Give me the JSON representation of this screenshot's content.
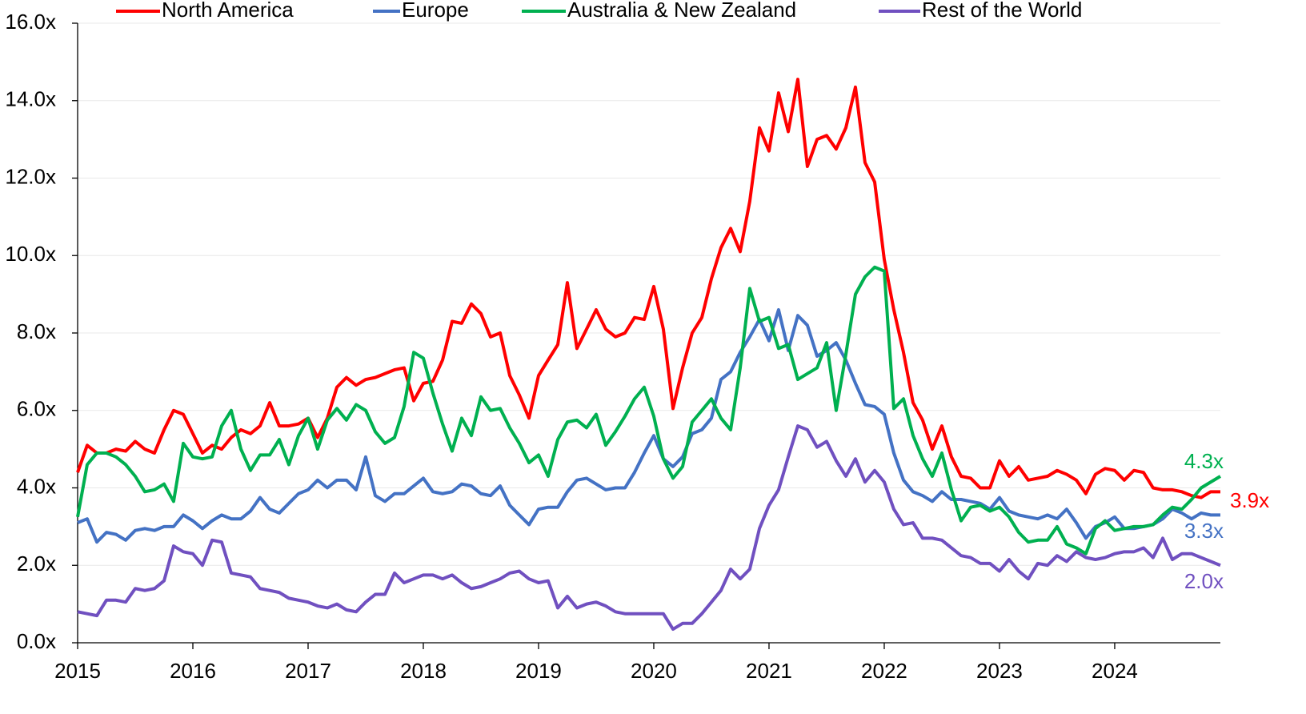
{
  "chart_data": {
    "type": "line",
    "legend": "top",
    "grid": true,
    "xlim": [
      2015,
      2024.917
    ],
    "xticks": [
      2015,
      2016,
      2017,
      2018,
      2019,
      2020,
      2021,
      2022,
      2023,
      2024
    ],
    "ylim": [
      0,
      16
    ],
    "yticks": [
      {
        "value": 0,
        "label": "0.0x"
      },
      {
        "value": 2,
        "label": "2.0x"
      },
      {
        "value": 4,
        "label": "4.0x"
      },
      {
        "value": 6,
        "label": "6.0x"
      },
      {
        "value": 8,
        "label": "8.0x"
      },
      {
        "value": 10,
        "label": "10.0x"
      },
      {
        "value": 12,
        "label": "12.0x"
      },
      {
        "value": 14,
        "label": "14.0x"
      },
      {
        "value": 16,
        "label": "16.0x"
      }
    ],
    "x": [
      2015,
      2015.083,
      2015.167,
      2015.25,
      2015.333,
      2015.417,
      2015.5,
      2015.583,
      2015.667,
      2015.75,
      2015.833,
      2015.917,
      2016,
      2016.083,
      2016.167,
      2016.25,
      2016.333,
      2016.417,
      2016.5,
      2016.583,
      2016.667,
      2016.75,
      2016.833,
      2016.917,
      2017,
      2017.083,
      2017.167,
      2017.25,
      2017.333,
      2017.417,
      2017.5,
      2017.583,
      2017.667,
      2017.75,
      2017.833,
      2017.917,
      2018,
      2018.083,
      2018.167,
      2018.25,
      2018.333,
      2018.417,
      2018.5,
      2018.583,
      2018.667,
      2018.75,
      2018.833,
      2018.917,
      2019,
      2019.083,
      2019.167,
      2019.25,
      2019.333,
      2019.417,
      2019.5,
      2019.583,
      2019.667,
      2019.75,
      2019.833,
      2019.917,
      2020,
      2020.083,
      2020.167,
      2020.25,
      2020.333,
      2020.417,
      2020.5,
      2020.583,
      2020.667,
      2020.75,
      2020.833,
      2020.917,
      2021,
      2021.083,
      2021.167,
      2021.25,
      2021.333,
      2021.417,
      2021.5,
      2021.583,
      2021.667,
      2021.75,
      2021.833,
      2021.917,
      2022,
      2022.083,
      2022.167,
      2022.25,
      2022.333,
      2022.417,
      2022.5,
      2022.583,
      2022.667,
      2022.75,
      2022.833,
      2022.917,
      2023,
      2023.083,
      2023.167,
      2023.25,
      2023.333,
      2023.417,
      2023.5,
      2023.583,
      2023.667,
      2023.75,
      2023.833,
      2023.917,
      2024,
      2024.083,
      2024.167,
      2024.25,
      2024.333,
      2024.417,
      2024.5,
      2024.583,
      2024.667,
      2024.75,
      2024.833,
      2024.917
    ],
    "series": [
      {
        "name": "North America",
        "color": "#ff0000",
        "end_label": "3.9x",
        "values": [
          4.4,
          5.1,
          4.9,
          4.9,
          5.0,
          4.95,
          5.2,
          5.0,
          4.9,
          5.5,
          6.0,
          5.9,
          5.4,
          4.9,
          5.1,
          5.0,
          5.3,
          5.5,
          5.4,
          5.6,
          6.2,
          5.6,
          5.6,
          5.65,
          5.8,
          5.3,
          5.8,
          6.6,
          6.85,
          6.65,
          6.8,
          6.85,
          6.95,
          7.05,
          7.1,
          6.25,
          6.7,
          6.75,
          7.3,
          8.3,
          8.25,
          8.75,
          8.5,
          7.9,
          8.0,
          6.9,
          6.4,
          5.8,
          6.9,
          7.3,
          7.7,
          9.3,
          7.6,
          8.1,
          8.6,
          8.1,
          7.9,
          8.0,
          8.4,
          8.35,
          9.2,
          8.1,
          6.05,
          7.1,
          8.0,
          8.4,
          9.4,
          10.2,
          10.7,
          10.1,
          11.4,
          13.3,
          12.7,
          14.2,
          13.2,
          14.55,
          12.3,
          13.0,
          13.1,
          12.75,
          13.3,
          14.35,
          12.4,
          11.9,
          9.9,
          8.6,
          7.5,
          6.2,
          5.75,
          5.0,
          5.6,
          4.8,
          4.3,
          4.25,
          4.0,
          4.0,
          4.7,
          4.3,
          4.55,
          4.2,
          4.25,
          4.3,
          4.45,
          4.35,
          4.2,
          3.85,
          4.35,
          4.5,
          4.45,
          4.2,
          4.45,
          4.4,
          4.0,
          3.95,
          3.95,
          3.9,
          3.8,
          3.75,
          3.9,
          3.9
        ]
      },
      {
        "name": "Europe",
        "color": "#4472c4",
        "end_label": "3.3x",
        "values": [
          3.1,
          3.2,
          2.6,
          2.85,
          2.8,
          2.65,
          2.9,
          2.95,
          2.9,
          3.0,
          3.0,
          3.3,
          3.15,
          2.95,
          3.15,
          3.3,
          3.2,
          3.2,
          3.4,
          3.75,
          3.45,
          3.35,
          3.6,
          3.85,
          3.95,
          4.2,
          4.0,
          4.2,
          4.2,
          3.95,
          4.8,
          3.8,
          3.65,
          3.85,
          3.85,
          4.05,
          4.25,
          3.9,
          3.85,
          3.9,
          4.1,
          4.05,
          3.85,
          3.8,
          4.05,
          3.55,
          3.3,
          3.05,
          3.45,
          3.5,
          3.5,
          3.9,
          4.2,
          4.25,
          4.1,
          3.95,
          4.0,
          4.0,
          4.4,
          4.9,
          5.35,
          4.75,
          4.55,
          4.8,
          5.4,
          5.5,
          5.8,
          6.8,
          7.0,
          7.5,
          7.9,
          8.35,
          7.8,
          8.6,
          7.55,
          8.45,
          8.2,
          7.4,
          7.55,
          7.75,
          7.3,
          6.7,
          6.15,
          6.1,
          5.9,
          4.9,
          4.2,
          3.9,
          3.8,
          3.65,
          3.9,
          3.7,
          3.7,
          3.65,
          3.6,
          3.45,
          3.75,
          3.4,
          3.3,
          3.25,
          3.2,
          3.3,
          3.2,
          3.45,
          3.1,
          2.7,
          3.0,
          3.1,
          3.25,
          2.95,
          2.95,
          3.0,
          3.05,
          3.2,
          3.45,
          3.35,
          3.2,
          3.35,
          3.3,
          3.3
        ]
      },
      {
        "name": "Australia & New Zealand",
        "color": "#00b050",
        "end_label": "4.3x",
        "values": [
          3.25,
          4.6,
          4.9,
          4.9,
          4.8,
          4.6,
          4.3,
          3.9,
          3.95,
          4.1,
          3.65,
          5.15,
          4.8,
          4.75,
          4.8,
          5.6,
          6.0,
          5.0,
          4.45,
          4.85,
          4.85,
          5.25,
          4.6,
          5.35,
          5.8,
          5.0,
          5.75,
          6.05,
          5.75,
          6.15,
          6.0,
          5.45,
          5.15,
          5.3,
          6.1,
          7.5,
          7.35,
          6.45,
          5.65,
          4.95,
          5.8,
          5.35,
          6.35,
          6.0,
          6.05,
          5.55,
          5.15,
          4.65,
          4.85,
          4.3,
          5.25,
          5.7,
          5.75,
          5.55,
          5.9,
          5.1,
          5.45,
          5.85,
          6.3,
          6.6,
          5.85,
          4.75,
          4.25,
          4.55,
          5.7,
          6.0,
          6.3,
          5.8,
          5.5,
          7.1,
          9.15,
          8.3,
          8.4,
          7.6,
          7.7,
          6.8,
          6.95,
          7.1,
          7.75,
          6.0,
          7.45,
          9.0,
          9.45,
          9.7,
          9.6,
          6.05,
          6.3,
          5.35,
          4.75,
          4.3,
          4.9,
          3.95,
          3.15,
          3.5,
          3.55,
          3.4,
          3.5,
          3.25,
          2.85,
          2.6,
          2.65,
          2.65,
          3.0,
          2.55,
          2.45,
          2.3,
          2.95,
          3.15,
          2.9,
          2.95,
          3.0,
          3.0,
          3.05,
          3.3,
          3.5,
          3.45,
          3.7,
          4.0,
          4.15,
          4.3
        ]
      },
      {
        "name": "Rest of the World",
        "color": "#7050c0",
        "end_label": "2.0x",
        "values": [
          0.8,
          0.75,
          0.7,
          1.1,
          1.1,
          1.05,
          1.4,
          1.35,
          1.4,
          1.6,
          2.5,
          2.35,
          2.3,
          2.0,
          2.65,
          2.6,
          1.8,
          1.75,
          1.7,
          1.4,
          1.35,
          1.3,
          1.15,
          1.1,
          1.05,
          0.95,
          0.9,
          1.0,
          0.85,
          0.8,
          1.05,
          1.25,
          1.25,
          1.8,
          1.55,
          1.65,
          1.75,
          1.75,
          1.65,
          1.75,
          1.55,
          1.4,
          1.45,
          1.55,
          1.65,
          1.8,
          1.85,
          1.65,
          1.55,
          1.6,
          0.9,
          1.2,
          0.9,
          1.0,
          1.05,
          0.95,
          0.8,
          0.75,
          0.75,
          0.75,
          0.75,
          0.75,
          0.35,
          0.5,
          0.5,
          0.75,
          1.05,
          1.35,
          1.9,
          1.65,
          1.9,
          2.95,
          3.55,
          3.95,
          4.8,
          5.6,
          5.5,
          5.05,
          5.2,
          4.7,
          4.3,
          4.75,
          4.15,
          4.45,
          4.15,
          3.45,
          3.05,
          3.1,
          2.7,
          2.7,
          2.65,
          2.45,
          2.25,
          2.2,
          2.05,
          2.05,
          1.85,
          2.15,
          1.85,
          1.65,
          2.05,
          2.0,
          2.25,
          2.1,
          2.35,
          2.2,
          2.15,
          2.2,
          2.3,
          2.35,
          2.35,
          2.45,
          2.2,
          2.7,
          2.15,
          2.3,
          2.3,
          2.2,
          2.1,
          2.0
        ]
      }
    ]
  }
}
